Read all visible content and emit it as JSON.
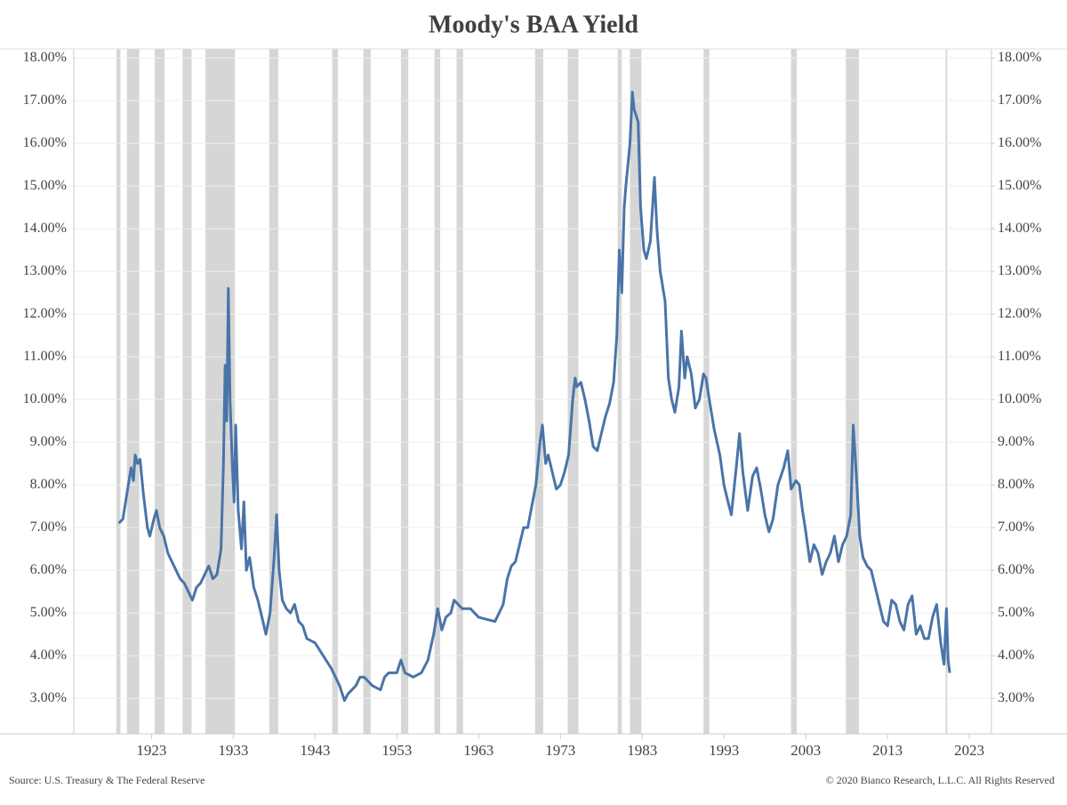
{
  "chart_data": {
    "type": "line",
    "title": "Moody's BAA Yield",
    "source": "Source: U.S. Treasury & The Federal Reserve",
    "copyright": "© 2020 Bianco Research, L.L.C. All Rights Reserved",
    "xlim": [
      1913.5,
      2025.7
    ],
    "xticks": [
      1923,
      1933,
      1943,
      1953,
      1963,
      1973,
      1983,
      1993,
      2003,
      2013,
      2023
    ],
    "ylim": [
      2.17,
      18.21
    ],
    "yticks": [
      {
        "value": 3,
        "label": "3.00%"
      },
      {
        "value": 4,
        "label": "4.00%"
      },
      {
        "value": 5,
        "label": "5.00%"
      },
      {
        "value": 6,
        "label": "6.00%"
      },
      {
        "value": 7,
        "label": "7.00%"
      },
      {
        "value": 8,
        "label": "8.00%"
      },
      {
        "value": 9,
        "label": "9.00%"
      },
      {
        "value": 10,
        "label": "10.00%"
      },
      {
        "value": 11,
        "label": "11.00%"
      },
      {
        "value": 12,
        "label": "12.00%"
      },
      {
        "value": 13,
        "label": "13.00%"
      },
      {
        "value": 14,
        "label": "14.00%"
      },
      {
        "value": 15,
        "label": "15.00%"
      },
      {
        "value": 16,
        "label": "16.00%"
      },
      {
        "value": 17,
        "label": "17.00%"
      },
      {
        "value": 18,
        "label": "18.00%"
      }
    ],
    "y2lim": [
      2.17,
      18.21
    ],
    "y2ticks": [
      {
        "value": 3,
        "label": "3.00%"
      },
      {
        "value": 4,
        "label": "4.00%"
      },
      {
        "value": 5,
        "label": "5.00%"
      },
      {
        "value": 6,
        "label": "6.00%"
      },
      {
        "value": 7,
        "label": "7.00%"
      },
      {
        "value": 8,
        "label": "8.00%"
      },
      {
        "value": 9,
        "label": "9.00%"
      },
      {
        "value": 10,
        "label": "10.00%"
      },
      {
        "value": 11,
        "label": "11.00%"
      },
      {
        "value": 12,
        "label": "12.00%"
      },
      {
        "value": 13,
        "label": "13.00%"
      },
      {
        "value": 14,
        "label": "14.00%"
      },
      {
        "value": 15,
        "label": "15.00%"
      },
      {
        "value": 16,
        "label": "16.00%"
      },
      {
        "value": 17,
        "label": "17.00%"
      },
      {
        "value": 18,
        "label": "18.00%"
      }
    ],
    "grid": true,
    "shade_color": "#d6d6d6",
    "recessions": [
      [
        1918.7,
        1919.2
      ],
      [
        1920.0,
        1921.5
      ],
      [
        1923.4,
        1924.6
      ],
      [
        1926.8,
        1927.9
      ],
      [
        1929.6,
        1933.2
      ],
      [
        1937.4,
        1938.5
      ],
      [
        1945.1,
        1945.8
      ],
      [
        1948.9,
        1949.8
      ],
      [
        1953.5,
        1954.4
      ],
      [
        1957.6,
        1958.3
      ],
      [
        1960.3,
        1961.1
      ],
      [
        1969.9,
        1970.9
      ],
      [
        1973.9,
        1975.2
      ],
      [
        1980.0,
        1980.5
      ],
      [
        1981.5,
        1982.9
      ],
      [
        1990.5,
        1991.2
      ],
      [
        2001.2,
        2001.9
      ],
      [
        2007.9,
        2009.5
      ],
      [
        2020.1,
        2020.3
      ]
    ],
    "series": [
      {
        "color": "#4a74a8",
        "x": [
          1919.0,
          1919.5,
          1920.0,
          1920.5,
          1920.8,
          1921.0,
          1921.3,
          1921.6,
          1922.0,
          1922.5,
          1922.8,
          1923.3,
          1923.6,
          1924.0,
          1924.5,
          1925.0,
          1925.5,
          1926.0,
          1926.5,
          1927.0,
          1927.5,
          1928.0,
          1928.5,
          1929.0,
          1929.5,
          1930.0,
          1930.5,
          1931.0,
          1931.5,
          1931.8,
          1932.0,
          1932.2,
          1932.4,
          1932.6,
          1932.9,
          1933.1,
          1933.3,
          1933.6,
          1934.0,
          1934.3,
          1934.6,
          1935.0,
          1935.5,
          1936.0,
          1936.5,
          1937.0,
          1937.5,
          1938.0,
          1938.3,
          1938.6,
          1939.0,
          1939.5,
          1940.0,
          1940.5,
          1941.0,
          1941.5,
          1942.0,
          1943.0,
          1944.0,
          1945.0,
          1946.0,
          1946.6,
          1947.0,
          1947.5,
          1948.0,
          1948.5,
          1949.0,
          1949.5,
          1950.0,
          1950.5,
          1951.0,
          1951.5,
          1952.0,
          1953.0,
          1953.5,
          1954.0,
          1955.0,
          1956.0,
          1956.8,
          1957.5,
          1958.0,
          1958.5,
          1959.0,
          1959.6,
          1960.0,
          1960.5,
          1961.0,
          1962.0,
          1963.0,
          1964.0,
          1965.0,
          1966.0,
          1966.5,
          1967.0,
          1967.5,
          1968.0,
          1968.5,
          1969.0,
          1969.5,
          1970.0,
          1970.5,
          1970.8,
          1971.2,
          1971.5,
          1972.0,
          1972.5,
          1973.0,
          1973.5,
          1974.0,
          1974.5,
          1974.8,
          1975.0,
          1975.5,
          1976.0,
          1976.5,
          1977.0,
          1977.5,
          1978.0,
          1978.5,
          1979.0,
          1979.5,
          1979.9,
          1980.2,
          1980.5,
          1980.8,
          1981.0,
          1981.5,
          1981.8,
          1982.0,
          1982.5,
          1982.8,
          1983.2,
          1983.5,
          1984.0,
          1984.5,
          1984.8,
          1985.2,
          1985.8,
          1986.2,
          1986.6,
          1987.0,
          1987.5,
          1987.8,
          1988.2,
          1988.5,
          1989.0,
          1989.5,
          1990.0,
          1990.5,
          1990.8,
          1991.2,
          1991.8,
          1992.5,
          1993.0,
          1993.5,
          1993.9,
          1994.5,
          1994.9,
          1995.3,
          1995.9,
          1996.5,
          1997.0,
          1997.5,
          1998.0,
          1998.5,
          1999.0,
          1999.6,
          2000.3,
          2000.8,
          2001.2,
          2001.8,
          2002.2,
          2002.6,
          2003.0,
          2003.5,
          2004.0,
          2004.5,
          2005.0,
          2005.5,
          2006.0,
          2006.5,
          2007.0,
          2007.5,
          2008.0,
          2008.5,
          2008.8,
          2009.2,
          2009.6,
          2010.0,
          2010.5,
          2011.0,
          2011.5,
          2012.0,
          2012.5,
          2013.0,
          2013.5,
          2014.0,
          2014.5,
          2015.0,
          2015.5,
          2016.0,
          2016.5,
          2017.0,
          2017.5,
          2018.0,
          2018.5,
          2019.0,
          2019.5,
          2019.9,
          2020.2,
          2020.4,
          2020.6
        ],
        "values": [
          7.1,
          7.2,
          7.8,
          8.4,
          8.1,
          8.7,
          8.5,
          8.6,
          7.8,
          7.0,
          6.8,
          7.2,
          7.4,
          7.0,
          6.8,
          6.4,
          6.2,
          6.0,
          5.8,
          5.7,
          5.5,
          5.3,
          5.6,
          5.7,
          5.9,
          6.1,
          5.8,
          5.9,
          6.5,
          8.5,
          10.8,
          9.5,
          12.6,
          10.0,
          8.4,
          7.6,
          9.4,
          7.4,
          6.5,
          7.6,
          6.0,
          6.3,
          5.6,
          5.3,
          4.9,
          4.5,
          5.0,
          6.3,
          7.3,
          6.0,
          5.3,
          5.1,
          5.0,
          5.2,
          4.8,
          4.7,
          4.4,
          4.3,
          4.0,
          3.7,
          3.3,
          2.95,
          3.1,
          3.2,
          3.3,
          3.5,
          3.5,
          3.4,
          3.3,
          3.25,
          3.2,
          3.5,
          3.6,
          3.6,
          3.9,
          3.6,
          3.5,
          3.6,
          3.9,
          4.5,
          5.1,
          4.6,
          4.9,
          5.0,
          5.3,
          5.2,
          5.1,
          5.1,
          4.9,
          4.85,
          4.8,
          5.2,
          5.8,
          6.1,
          6.2,
          6.6,
          7.0,
          7.0,
          7.5,
          8.0,
          9.0,
          9.4,
          8.5,
          8.7,
          8.3,
          7.9,
          8.0,
          8.3,
          8.7,
          10.0,
          10.5,
          10.3,
          10.4,
          10.0,
          9.5,
          8.9,
          8.8,
          9.2,
          9.6,
          9.9,
          10.4,
          11.5,
          13.5,
          12.5,
          14.5,
          15.0,
          16.0,
          17.2,
          16.8,
          16.5,
          14.5,
          13.5,
          13.3,
          13.7,
          15.2,
          14.0,
          13.0,
          12.3,
          10.5,
          10.0,
          9.7,
          10.3,
          11.6,
          10.5,
          11.0,
          10.6,
          9.8,
          10.0,
          10.6,
          10.5,
          10.0,
          9.3,
          8.7,
          8.0,
          7.6,
          7.3,
          8.4,
          9.2,
          8.3,
          7.4,
          8.2,
          8.4,
          7.9,
          7.3,
          6.9,
          7.2,
          8.0,
          8.4,
          8.8,
          7.9,
          8.1,
          8.0,
          7.4,
          6.9,
          6.2,
          6.6,
          6.4,
          5.9,
          6.2,
          6.4,
          6.8,
          6.2,
          6.6,
          6.8,
          7.3,
          9.4,
          8.2,
          6.8,
          6.3,
          6.1,
          6.0,
          5.6,
          5.2,
          4.8,
          4.7,
          5.3,
          5.2,
          4.8,
          4.6,
          5.2,
          5.4,
          4.5,
          4.7,
          4.4,
          4.4,
          4.9,
          5.2,
          4.3,
          3.8,
          5.1,
          3.9,
          3.6
        ]
      }
    ]
  }
}
